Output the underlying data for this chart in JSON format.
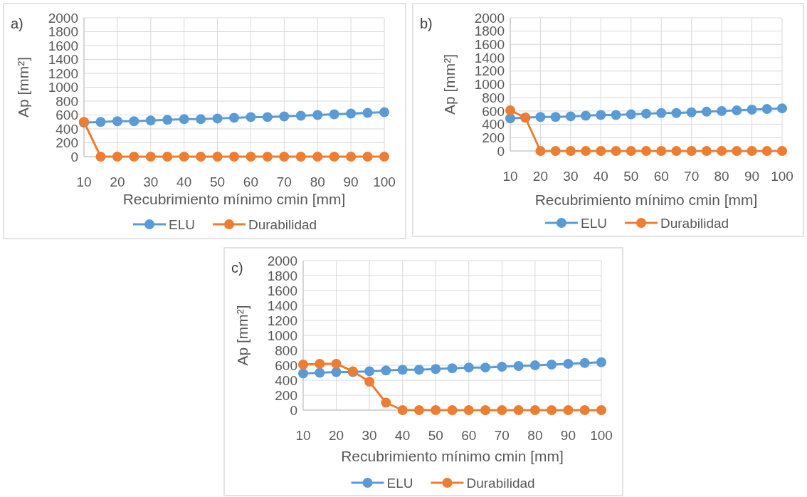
{
  "chart_data": [
    {
      "type": "line",
      "title": "a)",
      "xlabel": "Recubrimiento mínimo cmin [mm]",
      "ylabel": "Ap [mm²]",
      "x": [
        10,
        15,
        20,
        25,
        30,
        35,
        40,
        45,
        50,
        55,
        60,
        65,
        70,
        75,
        80,
        85,
        90,
        95,
        100
      ],
      "xlim": [
        10,
        100
      ],
      "xticks": [
        10,
        20,
        30,
        40,
        50,
        60,
        70,
        80,
        90,
        100
      ],
      "ylim": [
        0,
        2000
      ],
      "yticks": [
        0,
        200,
        400,
        600,
        800,
        1000,
        1200,
        1400,
        1600,
        1800,
        2000
      ],
      "grid": true,
      "legend": "bottom",
      "marker": "circle",
      "series": [
        {
          "name": "ELU",
          "color": "#5b9bd5",
          "values": [
            490,
            500,
            510,
            510,
            520,
            530,
            540,
            540,
            550,
            560,
            570,
            570,
            580,
            590,
            600,
            610,
            620,
            630,
            640
          ]
        },
        {
          "name": "Durabilidad",
          "color": "#ed7d31",
          "values": [
            500,
            0,
            0,
            0,
            0,
            0,
            0,
            0,
            0,
            0,
            0,
            0,
            0,
            0,
            0,
            0,
            0,
            0,
            0
          ]
        }
      ]
    },
    {
      "type": "line",
      "title": "b)",
      "xlabel": "Recubrimiento mínimo cmin [mm]",
      "ylabel": "Ap [mm²]",
      "x": [
        10,
        15,
        20,
        25,
        30,
        35,
        40,
        45,
        50,
        55,
        60,
        65,
        70,
        75,
        80,
        85,
        90,
        95,
        100
      ],
      "xlim": [
        10,
        100
      ],
      "xticks": [
        10,
        20,
        30,
        40,
        50,
        60,
        70,
        80,
        90,
        100
      ],
      "ylim": [
        0,
        2000
      ],
      "yticks": [
        0,
        200,
        400,
        600,
        800,
        1000,
        1200,
        1400,
        1600,
        1800,
        2000
      ],
      "grid": true,
      "legend": "bottom",
      "marker": "circle",
      "series": [
        {
          "name": "ELU",
          "color": "#5b9bd5",
          "values": [
            490,
            500,
            510,
            510,
            520,
            530,
            540,
            540,
            550,
            560,
            570,
            570,
            580,
            590,
            600,
            610,
            620,
            630,
            640
          ]
        },
        {
          "name": "Durabilidad",
          "color": "#ed7d31",
          "values": [
            610,
            500,
            0,
            0,
            0,
            0,
            0,
            0,
            0,
            0,
            0,
            0,
            0,
            0,
            0,
            0,
            0,
            0,
            0
          ]
        }
      ]
    },
    {
      "type": "line",
      "title": "c)",
      "xlabel": "Recubrimiento mínimo cmin [mm]",
      "ylabel": "Ap [mm²]",
      "x": [
        10,
        15,
        20,
        25,
        30,
        35,
        40,
        45,
        50,
        55,
        60,
        65,
        70,
        75,
        80,
        85,
        90,
        95,
        100
      ],
      "xlim": [
        10,
        100
      ],
      "xticks": [
        10,
        20,
        30,
        40,
        50,
        60,
        70,
        80,
        90,
        100
      ],
      "ylim": [
        0,
        2000
      ],
      "yticks": [
        0,
        200,
        400,
        600,
        800,
        1000,
        1200,
        1400,
        1600,
        1800,
        2000
      ],
      "grid": true,
      "legend": "bottom",
      "marker": "circle",
      "series": [
        {
          "name": "ELU",
          "color": "#5b9bd5",
          "values": [
            490,
            500,
            510,
            510,
            520,
            530,
            540,
            540,
            550,
            560,
            570,
            570,
            580,
            590,
            600,
            610,
            620,
            630,
            640
          ]
        },
        {
          "name": "Durabilidad",
          "color": "#ed7d31",
          "values": [
            610,
            620,
            620,
            520,
            380,
            100,
            0,
            0,
            0,
            0,
            0,
            0,
            0,
            0,
            0,
            0,
            0,
            0,
            0
          ]
        }
      ]
    }
  ]
}
